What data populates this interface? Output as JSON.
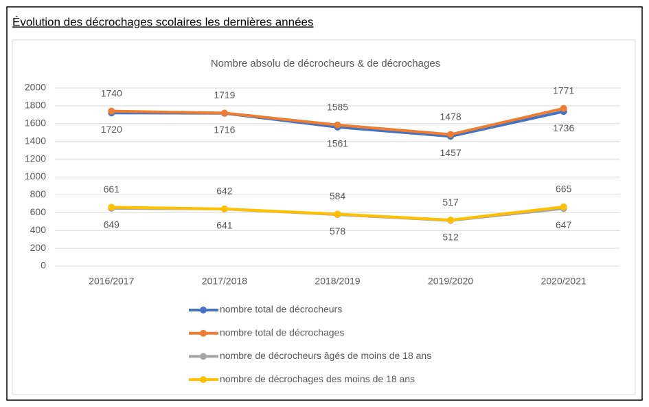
{
  "heading": "Évolution des décrochages scolaires les dernières années",
  "chart_data": {
    "type": "line",
    "title": "Nombre absolu de décrocheurs & de décrochages",
    "categories": [
      "2016/2017",
      "2017/2018",
      "2018/2019",
      "2019/2020",
      "2020/2021"
    ],
    "series": [
      {
        "name": "nombre total de décrocheurs",
        "color": "#4472c4",
        "values": [
          1720,
          1716,
          1561,
          1457,
          1736
        ],
        "label_position": "below"
      },
      {
        "name": "nombre total de décrochages",
        "color": "#ed7d31",
        "values": [
          1740,
          1719,
          1585,
          1478,
          1771
        ],
        "label_position": "above"
      },
      {
        "name": "nombre de décrocheurs âgés de moins de 18 ans",
        "color": "#a5a5a5",
        "values": [
          649,
          641,
          578,
          512,
          647
        ],
        "label_position": "below"
      },
      {
        "name": "nombre de décrochages des moins de 18 ans",
        "color": "#ffc000",
        "values": [
          661,
          642,
          584,
          517,
          665
        ],
        "label_position": "above"
      }
    ],
    "ylim": [
      0,
      2000
    ],
    "yticks": [
      0,
      200,
      400,
      600,
      800,
      1000,
      1200,
      1400,
      1600,
      1800,
      2000
    ],
    "grid": true,
    "legend": "bottom"
  }
}
